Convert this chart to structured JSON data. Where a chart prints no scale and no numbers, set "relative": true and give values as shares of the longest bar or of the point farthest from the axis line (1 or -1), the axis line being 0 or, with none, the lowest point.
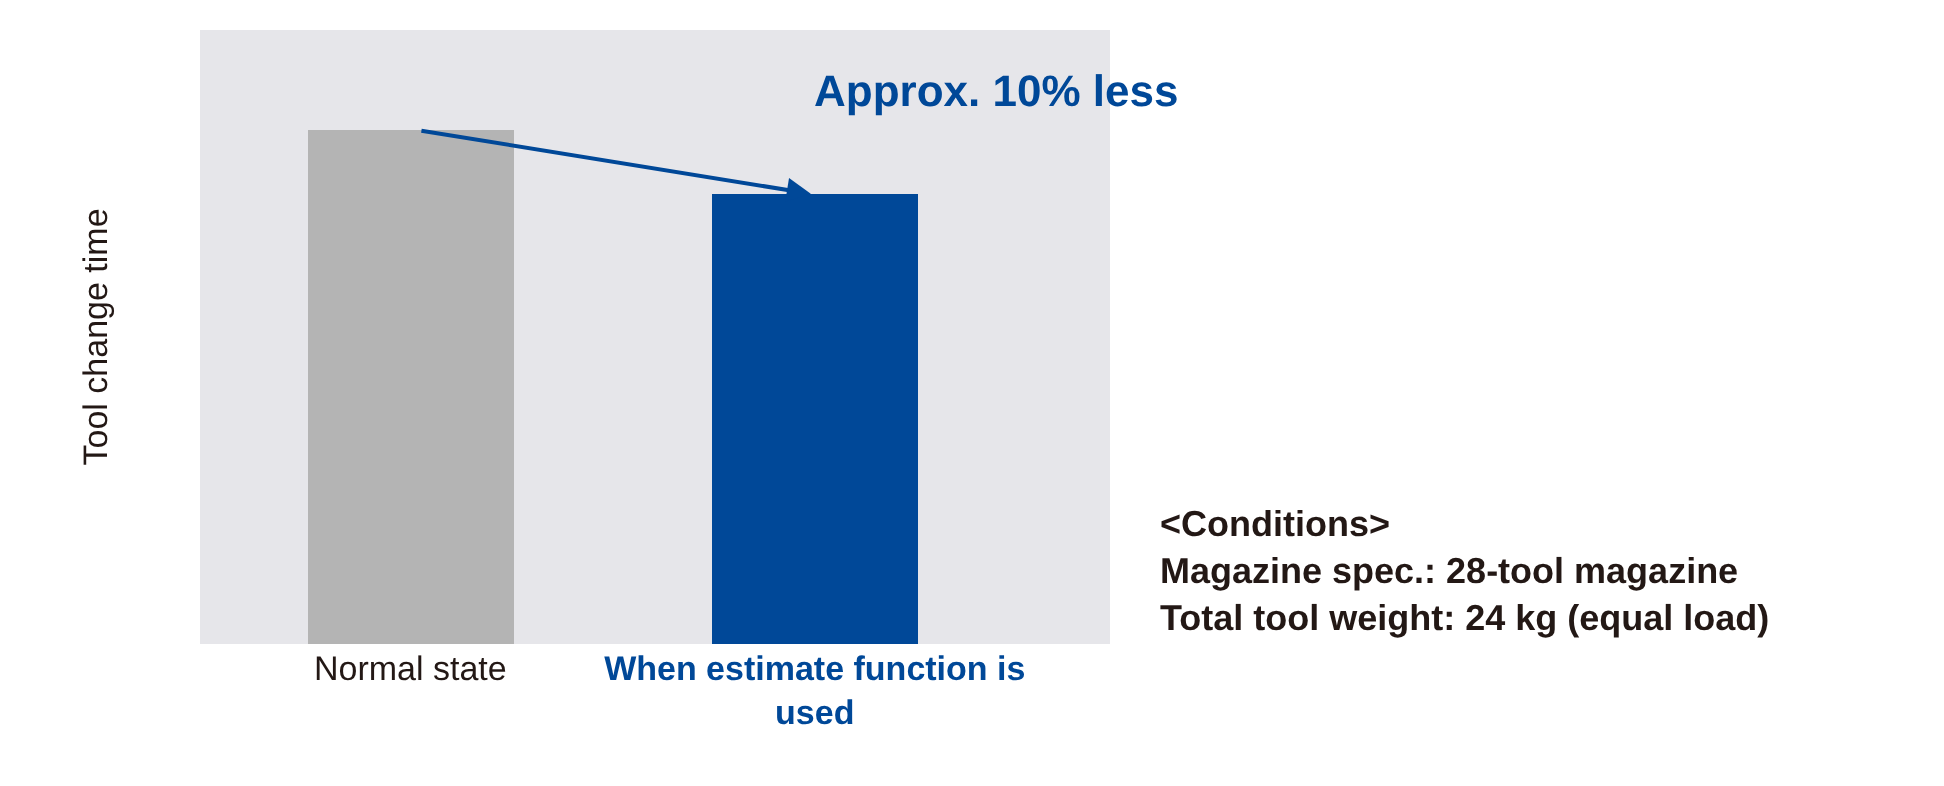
{
  "chart_data": {
    "type": "bar",
    "relative": true,
    "ylabel": "Tool change time",
    "categories": [
      "Normal state",
      "When estimate function is used"
    ],
    "values": [
      1,
      0.875
    ],
    "colors": [
      "#b4b4b4",
      "#004898"
    ],
    "annotations": [
      "Approx. 10% less",
      "<Conditions>",
      "Magazine spec.: 28-tool magazine",
      "Total tool weight: 24 kg (equal load)"
    ],
    "grid": false,
    "legend": false
  }
}
